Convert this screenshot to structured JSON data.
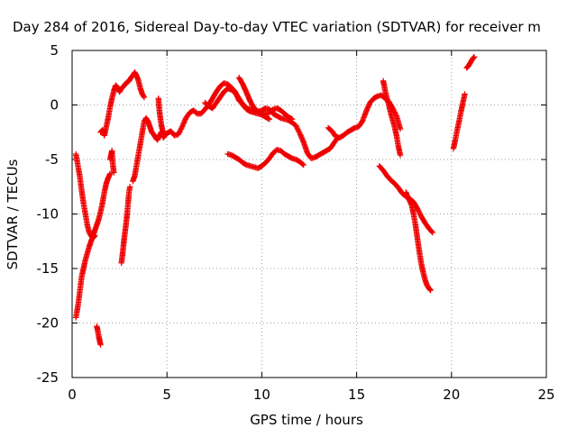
{
  "chart_data": {
    "type": "scatter",
    "title": "Day 284 of 2016, Sidereal Day-to-day VTEC variation (SDTVAR) for receiver m",
    "xlabel": "GPS time / hours",
    "ylabel": "SDTVAR / TECUs",
    "xlim": [
      0,
      25
    ],
    "ylim": [
      -25,
      5
    ],
    "x_ticks": [
      "0",
      "5",
      "10",
      "15",
      "20",
      "25"
    ],
    "y_ticks": [
      "5",
      "0",
      "-5",
      "-10",
      "-15",
      "-20",
      "-25"
    ],
    "grid": true,
    "marker": "plus",
    "color": "#ee0000",
    "series": [
      {
        "x": [
          0.2,
          0.3,
          0.4,
          0.5,
          0.6,
          0.7,
          0.8,
          0.9,
          1.0,
          1.1,
          1.2
        ],
        "y": [
          -4.5,
          -5.5,
          -6.5,
          -7.8,
          -9.0,
          -10.0,
          -11.0,
          -11.7,
          -12.0,
          -12.2,
          -12.0
        ]
      },
      {
        "x": [
          0.2,
          0.3,
          0.4,
          0.5,
          0.6,
          0.7,
          0.8,
          0.9,
          1.0,
          1.1,
          1.2,
          1.3,
          1.4,
          1.5,
          1.6,
          1.7,
          1.8,
          1.9,
          2.0
        ],
        "y": [
          -19.5,
          -18.5,
          -17.2,
          -15.8,
          -15.0,
          -14.2,
          -13.6,
          -13.0,
          -12.5,
          -12.0,
          -11.5,
          -11.0,
          -10.5,
          -9.8,
          -9.0,
          -8.0,
          -7.2,
          -6.7,
          -6.3
        ]
      },
      {
        "x": [
          1.3,
          1.35,
          1.4,
          1.45,
          1.5
        ],
        "y": [
          -20.3,
          -20.7,
          -21.2,
          -21.6,
          -22.0
        ]
      },
      {
        "x": [
          1.5,
          1.6,
          1.7,
          1.8,
          1.9,
          2.0,
          2.1,
          2.2,
          2.3,
          2.4,
          2.5,
          2.6,
          2.7,
          2.8,
          2.9,
          3.0,
          3.1,
          3.2,
          3.3,
          3.4,
          3.5,
          3.6,
          3.7,
          3.8
        ],
        "y": [
          -2.5,
          -2.3,
          -2.8,
          -2.0,
          -1.2,
          -0.2,
          0.6,
          1.3,
          1.8,
          1.6,
          1.2,
          1.5,
          1.7,
          1.9,
          2.1,
          2.2,
          2.5,
          2.7,
          3.0,
          2.7,
          2.2,
          1.5,
          1.0,
          0.7
        ]
      },
      {
        "x": [
          2.0,
          2.05,
          2.1,
          2.15,
          2.2
        ],
        "y": [
          -5.0,
          -4.6,
          -4.2,
          -5.5,
          -6.2
        ]
      },
      {
        "x": [
          2.6,
          2.65,
          2.7,
          2.75,
          2.8,
          2.85,
          2.9,
          2.95,
          3.0,
          3.05
        ],
        "y": [
          -14.5,
          -13.8,
          -13.0,
          -12.2,
          -11.5,
          -10.8,
          -10.0,
          -9.0,
          -8.0,
          -7.5
        ]
      },
      {
        "x": [
          3.2,
          3.3,
          3.4,
          3.5,
          3.6,
          3.7,
          3.8,
          3.9,
          4.0,
          4.1,
          4.2,
          4.3,
          4.4,
          4.5,
          4.6,
          4.7,
          4.8
        ],
        "y": [
          -7.0,
          -6.5,
          -5.5,
          -4.5,
          -3.5,
          -2.5,
          -1.5,
          -1.2,
          -1.5,
          -2.0,
          -2.5,
          -2.7,
          -3.0,
          -3.2,
          -2.8,
          -2.5,
          -2.4
        ]
      },
      {
        "x": [
          4.55,
          4.6,
          4.65,
          4.7,
          4.75,
          4.8
        ],
        "y": [
          0.6,
          -0.5,
          -1.2,
          -1.8,
          -2.2,
          -2.6
        ]
      },
      {
        "x": [
          4.8,
          5.0,
          5.2,
          5.4,
          5.6,
          5.8,
          6.0,
          6.2,
          6.4,
          6.6,
          6.8,
          7.0,
          7.2,
          7.4,
          7.6,
          7.8,
          8.0,
          8.2,
          8.4,
          8.6,
          8.8,
          9.0,
          9.2,
          9.4,
          9.6,
          9.8,
          10.0,
          10.2,
          10.4,
          10.6,
          10.8,
          11.0,
          11.2,
          11.4,
          11.6,
          11.8,
          12.0,
          12.2,
          12.4,
          12.6,
          12.8,
          13.0,
          13.2,
          13.4,
          13.6,
          13.8,
          14.0
        ],
        "y": [
          -3.0,
          -2.6,
          -2.4,
          -2.8,
          -2.7,
          -2.0,
          -1.2,
          -0.7,
          -0.5,
          -0.8,
          -0.8,
          -0.4,
          0.0,
          0.6,
          1.2,
          1.7,
          2.0,
          1.9,
          1.6,
          1.2,
          0.4,
          0.1,
          -0.3,
          -0.4,
          -0.6,
          -0.6,
          -0.5,
          -0.3,
          -0.4,
          -0.8,
          -1.0,
          -1.2,
          -1.3,
          -1.4,
          -1.6,
          -1.9,
          -2.6,
          -3.4,
          -4.4,
          -4.9,
          -4.8,
          -4.6,
          -4.4,
          -4.2,
          -4.0,
          -3.5,
          -3.0
        ]
      },
      {
        "x": [
          7.0,
          7.2,
          7.4,
          7.6,
          7.8,
          8.0,
          8.2,
          8.4,
          8.6,
          8.8,
          9.0,
          9.2,
          9.4,
          9.6,
          9.8,
          10.0,
          10.2,
          10.4,
          10.6,
          10.8,
          11.0,
          11.2,
          11.4,
          11.6
        ],
        "y": [
          0.2,
          -0.1,
          -0.3,
          0.2,
          0.7,
          1.2,
          1.5,
          1.4,
          1.1,
          0.6,
          0.0,
          -0.4,
          -0.6,
          -0.7,
          -0.8,
          -0.9,
          -0.8,
          -0.7,
          -0.4,
          -0.3,
          -0.5,
          -0.8,
          -1.1,
          -1.3
        ]
      },
      {
        "x": [
          8.8,
          8.9,
          9.0,
          9.1,
          9.2,
          9.3,
          9.4,
          9.5,
          9.6,
          9.8,
          10.0,
          10.2,
          10.4
        ],
        "y": [
          2.5,
          2.2,
          1.9,
          1.5,
          1.1,
          0.7,
          0.3,
          0.0,
          -0.3,
          -0.6,
          -0.9,
          -1.1,
          -1.3
        ]
      },
      {
        "x": [
          8.2,
          8.4,
          8.6,
          8.8,
          9.0,
          9.2,
          9.4,
          9.6,
          9.8,
          10.0,
          10.2,
          10.4,
          10.6,
          10.8,
          11.0,
          11.2,
          11.4,
          11.6,
          11.8,
          12.0,
          12.2
        ],
        "y": [
          -4.5,
          -4.6,
          -4.8,
          -5.0,
          -5.3,
          -5.5,
          -5.6,
          -5.7,
          -5.8,
          -5.6,
          -5.3,
          -4.9,
          -4.4,
          -4.1,
          -4.2,
          -4.5,
          -4.7,
          -4.9,
          -5.0,
          -5.2,
          -5.5
        ]
      },
      {
        "x": [
          13.5,
          13.7,
          13.9,
          14.1,
          14.3,
          14.5,
          14.7,
          14.9,
          15.1,
          15.3,
          15.5,
          15.7,
          15.9,
          16.1,
          16.3,
          16.5,
          16.7,
          16.9,
          17.1,
          17.3
        ],
        "y": [
          -2.1,
          -2.4,
          -2.9,
          -3.0,
          -2.8,
          -2.5,
          -2.3,
          -2.1,
          -2.0,
          -1.5,
          -0.6,
          0.2,
          0.6,
          0.8,
          0.9,
          0.6,
          0.3,
          -0.3,
          -1.0,
          -2.2
        ]
      },
      {
        "x": [
          16.4,
          16.45,
          16.5,
          16.6,
          16.7,
          16.8,
          16.9,
          17.0,
          17.1,
          17.2,
          17.3
        ],
        "y": [
          2.2,
          1.8,
          1.3,
          0.6,
          0.0,
          -0.8,
          -1.4,
          -2.0,
          -2.8,
          -3.8,
          -4.6
        ]
      },
      {
        "x": [
          16.2,
          16.4,
          16.6,
          16.8,
          17.0,
          17.2,
          17.4,
          17.6,
          17.8,
          18.0,
          18.2,
          18.4,
          18.6,
          18.8,
          19.0
        ],
        "y": [
          -5.6,
          -6.0,
          -6.5,
          -6.9,
          -7.2,
          -7.6,
          -8.1,
          -8.4,
          -8.6,
          -8.9,
          -9.5,
          -10.2,
          -10.8,
          -11.3,
          -11.7
        ]
      },
      {
        "x": [
          17.6,
          17.7,
          17.8,
          17.9,
          18.0,
          18.1,
          18.2,
          18.3,
          18.4,
          18.5,
          18.6,
          18.7,
          18.8,
          18.9
        ],
        "y": [
          -8.0,
          -8.5,
          -8.8,
          -9.2,
          -10.0,
          -11.0,
          -12.2,
          -13.4,
          -14.5,
          -15.3,
          -16.0,
          -16.5,
          -16.8,
          -17.0
        ]
      },
      {
        "x": [
          20.1,
          20.2,
          20.3,
          20.4,
          20.5,
          20.6,
          20.7
        ],
        "y": [
          -4.0,
          -3.2,
          -2.3,
          -1.5,
          -0.6,
          0.2,
          1.0
        ]
      },
      {
        "x": [
          20.8,
          20.9,
          21.0,
          21.1,
          21.2
        ],
        "y": [
          3.4,
          3.6,
          3.9,
          4.2,
          4.4
        ]
      }
    ]
  }
}
